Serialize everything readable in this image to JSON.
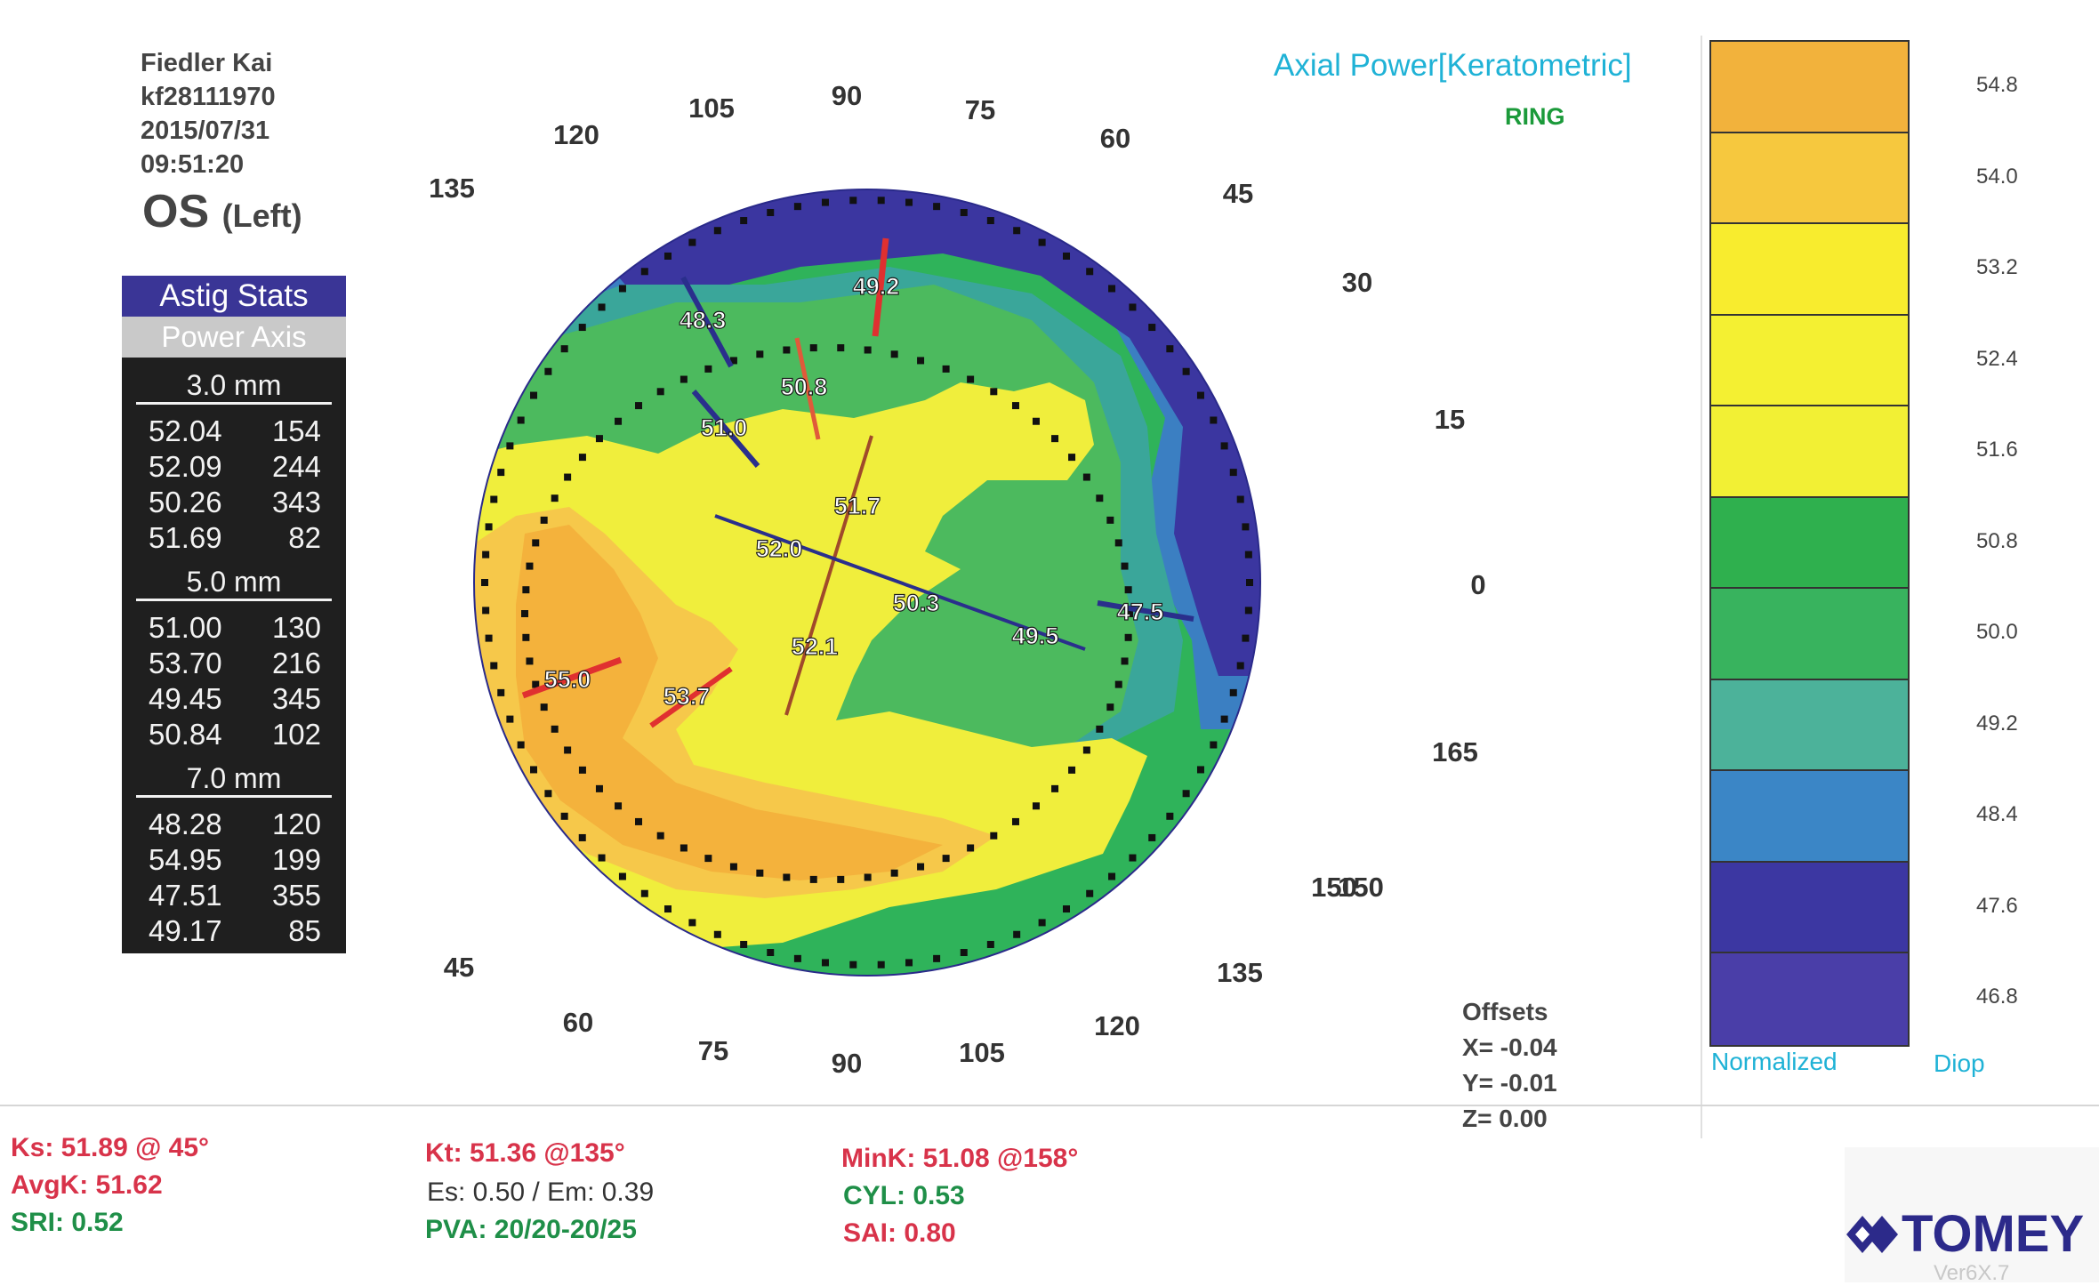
{
  "patient": {
    "name": "Fiedler Kai",
    "id": "kf28111970",
    "date": "2015/07/31",
    "time": "09:51:20",
    "eye": "OS",
    "eye_side": "(Left)"
  },
  "map": {
    "title": "Axial Power[Keratometric]",
    "mode_badge": "RING",
    "ring_labels": [
      "90",
      "75",
      "60",
      "45",
      "30",
      "15",
      "0",
      "165",
      "150",
      "135",
      "120",
      "105",
      "90",
      "75",
      "60",
      "45",
      "135",
      "120",
      "105",
      "150"
    ],
    "colors": {
      "orange": "#f4b23c",
      "orange_light": "#f6c84a",
      "yellow": "#f0ee3c",
      "yellow_light": "#f2f24c",
      "green": "#2fb35a",
      "green_light": "#4cba5e",
      "teal": "#3aa69a",
      "blue": "#3b7fc2",
      "indigo": "#3b36a0",
      "violet": "#4638a8"
    },
    "value_labels": [
      "49.2",
      "48.3",
      "50.8",
      "51.0",
      "51.7",
      "52.0",
      "50.3",
      "49.5",
      "47.5",
      "52.1",
      "55.0",
      "53.7"
    ]
  },
  "astig_stats": {
    "header": "Astig Stats",
    "subheader": "Power  Axis",
    "sections": [
      {
        "label": "3.0 mm",
        "rows": [
          [
            "52.04",
            "154"
          ],
          [
            "52.09",
            "244"
          ],
          [
            "50.26",
            "343"
          ],
          [
            "51.69",
            "82"
          ]
        ]
      },
      {
        "label": "5.0 mm",
        "rows": [
          [
            "51.00",
            "130"
          ],
          [
            "53.70",
            "216"
          ],
          [
            "49.45",
            "345"
          ],
          [
            "50.84",
            "102"
          ]
        ]
      },
      {
        "label": "7.0 mm",
        "rows": [
          [
            "48.28",
            "120"
          ],
          [
            "54.95",
            "199"
          ],
          [
            "47.51",
            "355"
          ],
          [
            "49.17",
            "85"
          ]
        ]
      }
    ]
  },
  "scale": {
    "values": [
      "54.8",
      "54.0",
      "53.2",
      "52.4",
      "51.6",
      "50.8",
      "50.0",
      "49.2",
      "48.4",
      "47.6",
      "46.8"
    ],
    "colors": [
      "#f2b23c",
      "#f6c83e",
      "#f8ec2e",
      "#f4f032",
      "#f2f034",
      "#2fb04e",
      "#38b35e",
      "#4cb29a",
      "#3b86c6",
      "#3c37a2",
      "#4a3ea8"
    ],
    "normalized_label": "Normalized",
    "unit": "Diop"
  },
  "offsets": {
    "title": "Offsets",
    "x": "X= -0.04",
    "y": "Y= -0.01",
    "z": "Z=  0.00"
  },
  "metrics": {
    "ks": "Ks: 51.89 @ 45°",
    "avgk": "AvgK: 51.62",
    "sri": "SRI: 0.52",
    "kt": "Kt: 51.36 @135°",
    "es_em": "Es: 0.50 / Em: 0.39",
    "pva": "PVA: 20/20-20/25",
    "mink": "MinK: 51.08 @158°",
    "cyl": "CYL:  0.53",
    "sai": "SAI: 0.80"
  },
  "brand": {
    "logo": "TOMEY",
    "version": "Ver6X.7"
  }
}
